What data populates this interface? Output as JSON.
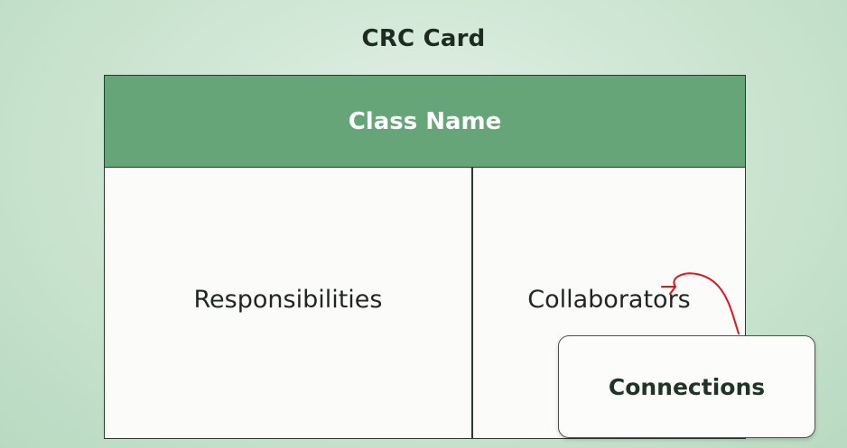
{
  "title": "CRC Card",
  "card": {
    "header": "Class Name",
    "left_label": "Responsibilities",
    "right_label": "Collaborators"
  },
  "callout": {
    "label": "Connections"
  },
  "colors": {
    "header_fill": "#66a577",
    "annotation_stroke": "#e0141b"
  }
}
